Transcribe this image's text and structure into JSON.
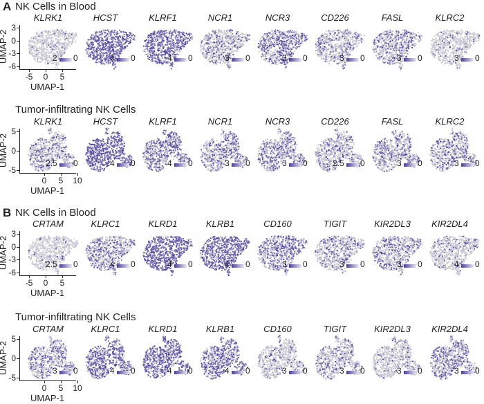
{
  "panels": [
    {
      "label": "A",
      "rows": [
        {
          "title": "NK Cells in Blood",
          "shape": "blood",
          "axes": {
            "xlabel": "UMAP-1",
            "ylabel": "UMAP-2",
            "xticks": [
              "-5",
              "0",
              "5"
            ],
            "yticks": [
              "3",
              "0",
              "-3",
              "-6"
            ]
          },
          "plots": [
            {
              "gene": "KLRK1",
              "legend_max": "2",
              "legend_min": "0",
              "relative_expression": 0.05
            },
            {
              "gene": "HCST",
              "legend_max": "4",
              "legend_min": "0",
              "relative_expression": 0.85
            },
            {
              "gene": "KLRF1",
              "legend_max": "4",
              "legend_min": "0",
              "relative_expression": 0.8
            },
            {
              "gene": "NCR1",
              "legend_max": "3",
              "legend_min": "0",
              "relative_expression": 0.3
            },
            {
              "gene": "NCR3",
              "legend_max": "3",
              "legend_min": "0",
              "relative_expression": 0.5
            },
            {
              "gene": "CD226",
              "legend_max": "3",
              "legend_min": "0",
              "relative_expression": 0.3
            },
            {
              "gene": "FASL",
              "legend_max": "3",
              "legend_min": "0",
              "relative_expression": 0.35
            },
            {
              "gene": "KLRC2",
              "legend_max": "3",
              "legend_min": "0",
              "relative_expression": 0.1
            }
          ]
        },
        {
          "title": "Tumor-infiltrating NK Cells",
          "shape": "tumor",
          "axes": {
            "xlabel": "UMAP-1",
            "ylabel": "UMAP-2",
            "xticks": [
              "0",
              "5",
              "10"
            ],
            "yticks": [
              "5",
              "0",
              "-5"
            ]
          },
          "plots": [
            {
              "gene": "KLRK1",
              "legend_max": "2.5",
              "legend_min": "0",
              "relative_expression": 0.3
            },
            {
              "gene": "HCST",
              "legend_max": "4",
              "legend_min": "0",
              "relative_expression": 0.85
            },
            {
              "gene": "KLRF1",
              "legend_max": "4",
              "legend_min": "0",
              "relative_expression": 0.6
            },
            {
              "gene": "NCR1",
              "legend_max": "3",
              "legend_min": "0",
              "relative_expression": 0.4
            },
            {
              "gene": "NCR3",
              "legend_max": "3",
              "legend_min": "0",
              "relative_expression": 0.4
            },
            {
              "gene": "CD226",
              "legend_max": "2.5",
              "legend_min": "0",
              "relative_expression": 0.3
            },
            {
              "gene": "FASL",
              "legend_max": "3",
              "legend_min": "0",
              "relative_expression": 0.35
            },
            {
              "gene": "KLRC2",
              "legend_max": "3",
              "legend_min": "0",
              "relative_expression": 0.35
            }
          ]
        }
      ]
    },
    {
      "label": "B",
      "rows": [
        {
          "title": "NK Cells in Blood",
          "shape": "blood",
          "axes": {
            "xlabel": "UMAP-1",
            "ylabel": "UMAP-2",
            "xticks": [
              "-5",
              "0",
              "5"
            ],
            "yticks": [
              "3",
              "0",
              "-3",
              "-6"
            ]
          },
          "plots": [
            {
              "gene": "CRTAM",
              "legend_max": "2.5",
              "legend_min": "0",
              "relative_expression": 0.05
            },
            {
              "gene": "KLRC1",
              "legend_max": "4",
              "legend_min": "0",
              "relative_expression": 0.4
            },
            {
              "gene": "KLRD1",
              "legend_max": "4",
              "legend_min": "0",
              "relative_expression": 0.85
            },
            {
              "gene": "KLRB1",
              "legend_max": "4",
              "legend_min": "0",
              "relative_expression": 0.8
            },
            {
              "gene": "CD160",
              "legend_max": "3",
              "legend_min": "0",
              "relative_expression": 0.5
            },
            {
              "gene": "TIGIT",
              "legend_max": "3",
              "legend_min": "0",
              "relative_expression": 0.25
            },
            {
              "gene": "KIR2DL3",
              "legend_max": "3",
              "legend_min": "0",
              "relative_expression": 0.35
            },
            {
              "gene": "KIR2DL4",
              "legend_max": "4",
              "legend_min": "0",
              "relative_expression": 0.15
            }
          ]
        },
        {
          "title": "Tumor-infiltrating NK Cells",
          "shape": "tumor",
          "axes": {
            "xlabel": "UMAP-1",
            "ylabel": "UMAP-2",
            "xticks": [
              "0",
              "5",
              "10"
            ],
            "yticks": [
              "5",
              "0",
              "-5"
            ]
          },
          "plots": [
            {
              "gene": "CRTAM",
              "legend_max": "3",
              "legend_min": "0",
              "relative_expression": 0.35
            },
            {
              "gene": "KLRC1",
              "legend_max": "4",
              "legend_min": "0",
              "relative_expression": 0.65
            },
            {
              "gene": "KLRD1",
              "legend_max": "4",
              "legend_min": "0",
              "relative_expression": 0.75
            },
            {
              "gene": "KLRB1",
              "legend_max": "4",
              "legend_min": "0",
              "relative_expression": 0.6
            },
            {
              "gene": "CD160",
              "legend_max": "3",
              "legend_min": "0",
              "relative_expression": 0.15
            },
            {
              "gene": "TIGIT",
              "legend_max": "3",
              "legend_min": "0",
              "relative_expression": 0.25
            },
            {
              "gene": "KIR2DL3",
              "legend_max": "3",
              "legend_min": "0",
              "relative_expression": 0.15
            },
            {
              "gene": "KIR2DL4",
              "legend_max": "3",
              "legend_min": "0",
              "relative_expression": 0.45
            }
          ]
        }
      ]
    }
  ],
  "colors": {
    "low": "#d4d4d8",
    "high": "#4b3f9c"
  },
  "chart_data": {
    "type": "scatter",
    "description_kind": "UMAP feature plots",
    "xlabel": "UMAP-1",
    "ylabel": "UMAP-2",
    "legend_placement": "bottom-right of each plot",
    "grid": false
  }
}
